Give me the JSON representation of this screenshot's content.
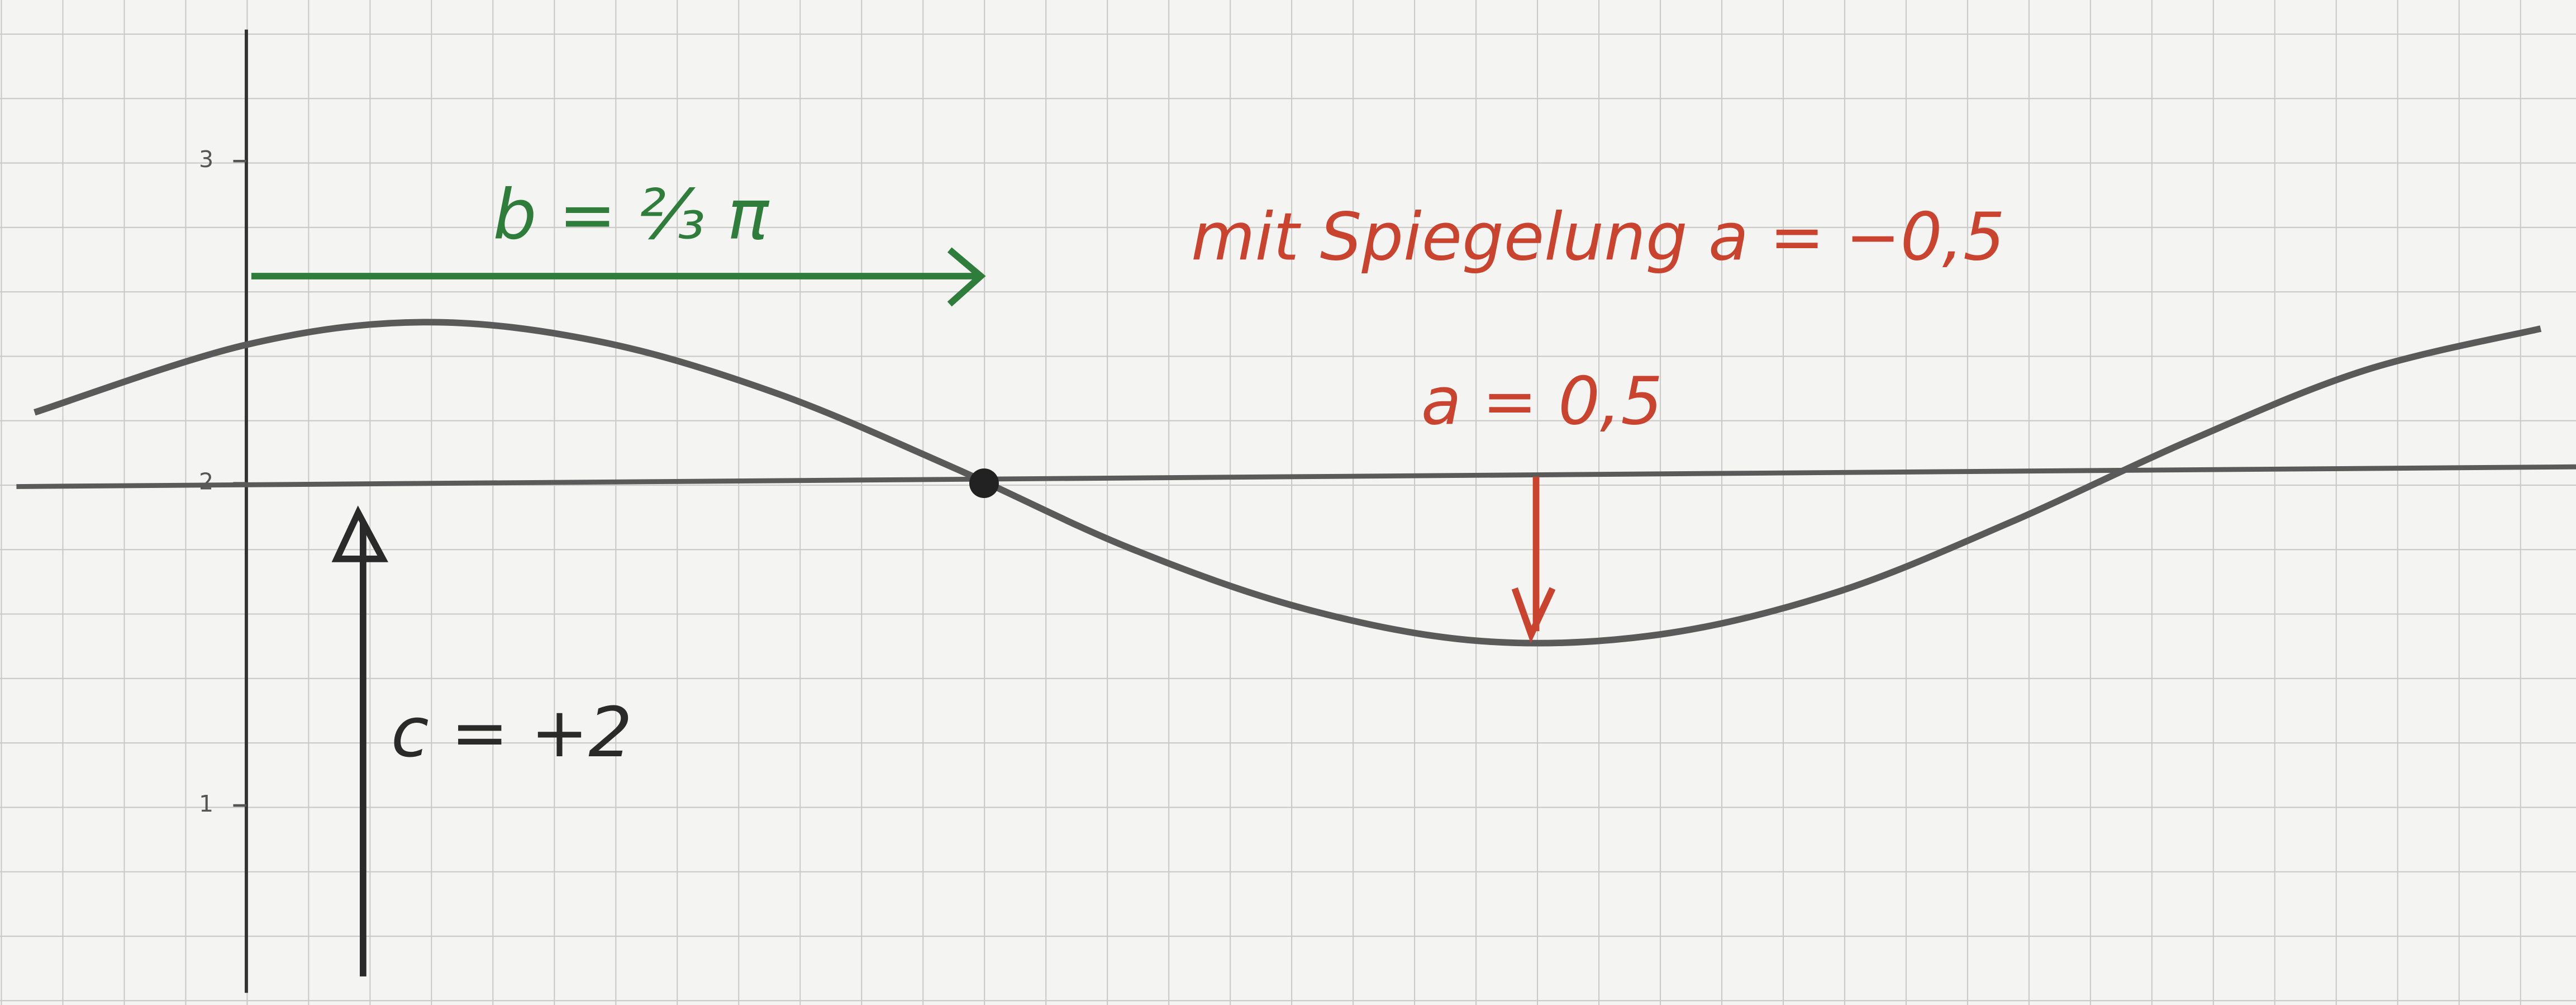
{
  "chart_data": {
    "type": "line",
    "x": [
      -0.6,
      0,
      0.5,
      1,
      1.5,
      2,
      2.5,
      3,
      3.5,
      4,
      4.5,
      5,
      5.5,
      6,
      6.5
    ],
    "series": [
      {
        "color": "#5a5a5a",
        "values": [
          2.22,
          2.43,
          2.5,
          2.44,
          2.28,
          2.05,
          1.8,
          1.61,
          1.51,
          1.53,
          1.66,
          1.88,
          2.13,
          2.35,
          2.48
        ]
      }
    ],
    "xlim": [
      -0.65,
      6.6
    ],
    "ylim": [
      0.45,
      3.5
    ],
    "yticks": [
      1,
      2,
      3
    ],
    "marked_point": {
      "x": 2.09,
      "y": 2
    },
    "annotations": [
      "b = ⅔ π",
      "mit Spiegelung a = −0,5",
      "a = 0,5",
      "c = +2"
    ],
    "grid": true
  }
}
